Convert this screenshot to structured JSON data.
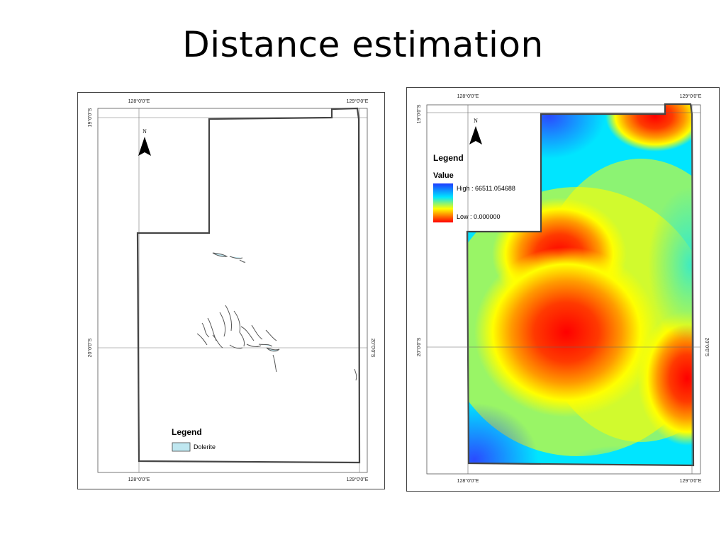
{
  "slide": {
    "title": "Distance estimation"
  },
  "left_map": {
    "coords": {
      "top_left_lon": "128°0'0\"E",
      "top_right_lon": "129°0'0\"E",
      "bottom_left_lon": "128°0'0\"E",
      "bottom_right_lon": "129°0'0\"E",
      "left_top_lat": "19°0'0\"S",
      "left_mid_lat": "20°0'0\"S",
      "right_mid_lat": "20°0'0\"S"
    },
    "north_arrow_label": "N",
    "legend": {
      "title": "Legend",
      "items": [
        {
          "label": "Dolerite",
          "color": "#bfe7f0"
        }
      ]
    }
  },
  "right_map": {
    "coords": {
      "top_left_lon": "128°0'0\"E",
      "top_right_lon": "129°0'0\"E",
      "bottom_left_lon": "128°0'0\"E",
      "bottom_right_lon": "129°0'0\"E",
      "left_top_lat": "19°0'0\"S",
      "left_mid_lat": "20°0'0\"S",
      "right_mid_lat": "20°0'0\"S"
    },
    "north_arrow_label": "N",
    "legend": {
      "title": "Legend",
      "subtitle": "Value",
      "high_label": "High : 66511.054688",
      "low_label": "Low : 0.000000",
      "ramp_colors": [
        "#1f3cff",
        "#00e5ff",
        "#ffff00",
        "#ff0000"
      ]
    }
  }
}
